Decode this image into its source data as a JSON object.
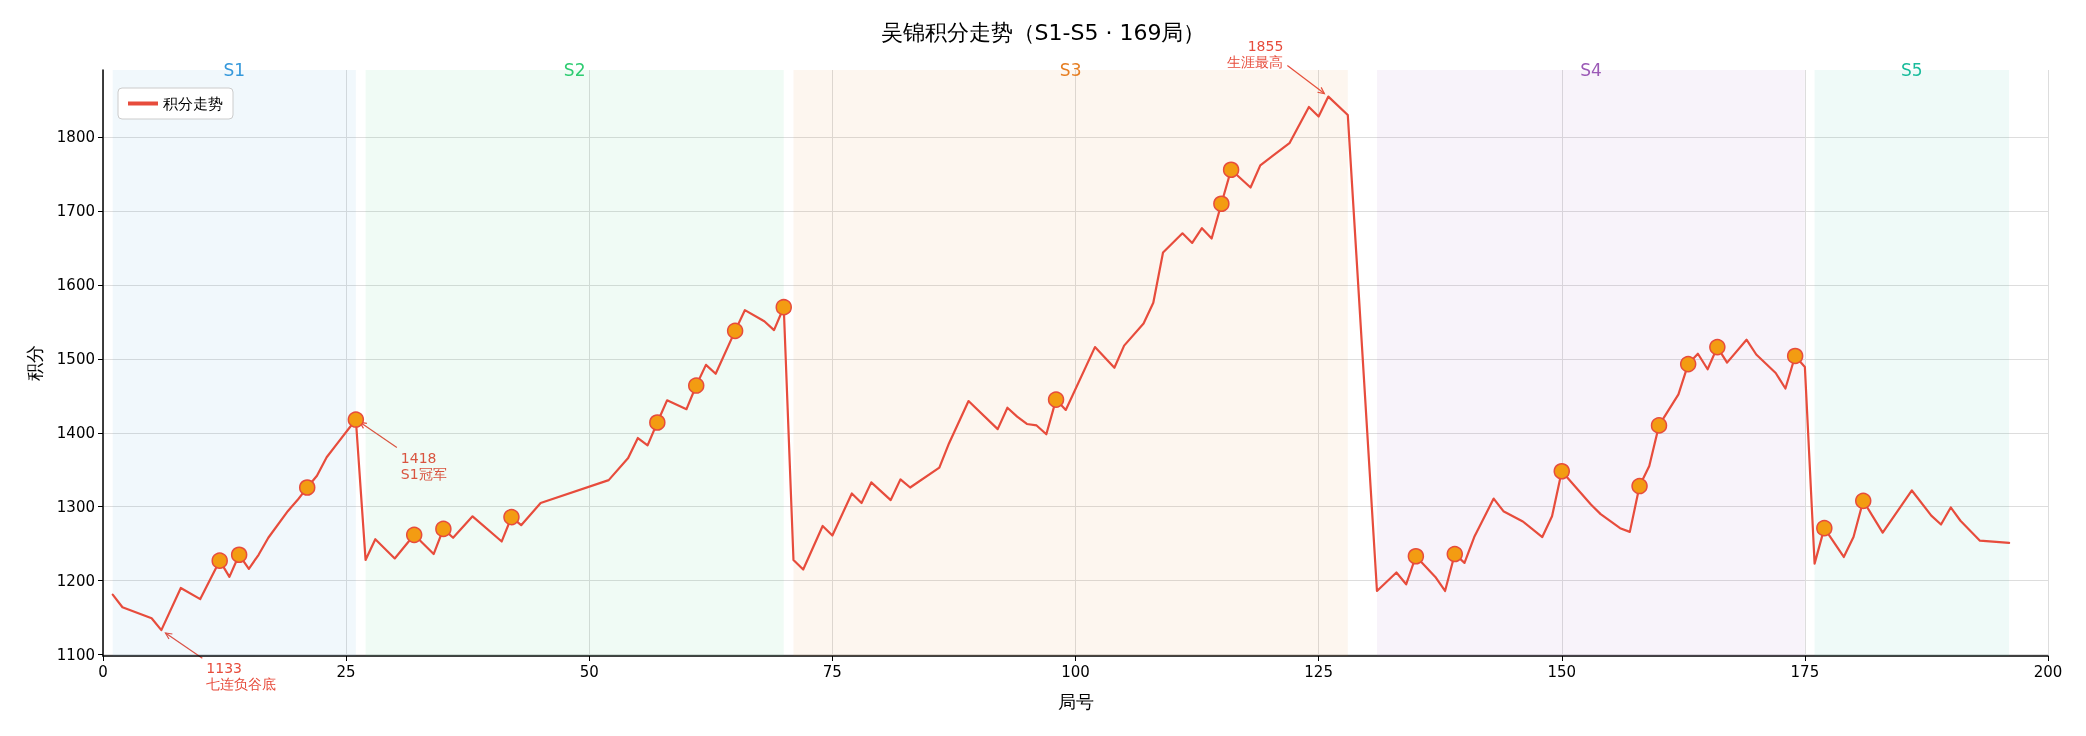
{
  "chart_data": {
    "type": "line",
    "title": "吴锦积分走势（S1-S5 · 169局）",
    "xlabel": "局号",
    "ylabel": "积分",
    "xlim": [
      0,
      200
    ],
    "xticks": [
      0,
      25,
      50,
      75,
      100,
      125,
      150,
      175,
      200
    ],
    "ylim": [
      1098,
      1891
    ],
    "yticks": [
      1100,
      1200,
      1300,
      1400,
      1500,
      1600,
      1700,
      1800
    ],
    "grid": true,
    "legend": "top left",
    "series": [
      {
        "name": "积分走势",
        "color": "#e74c3c",
        "x": [
          1,
          2,
          5,
          6,
          8,
          10,
          12,
          13,
          14,
          15,
          16,
          17,
          19,
          20,
          21,
          22,
          23,
          24,
          26,
          27,
          28,
          30,
          32,
          34,
          35,
          36,
          38,
          41,
          42,
          43,
          45,
          52,
          54,
          55,
          56,
          57,
          58,
          60,
          61,
          62,
          63,
          65,
          66,
          68,
          69,
          70,
          71,
          72,
          74,
          75,
          77,
          78,
          79,
          81,
          82,
          83,
          86,
          87,
          89,
          92,
          93,
          94,
          95,
          96,
          97,
          98,
          99,
          102,
          104,
          105,
          107,
          108,
          109,
          111,
          112,
          113,
          114,
          115,
          116,
          118,
          119,
          122,
          124,
          125,
          126,
          128,
          131,
          133,
          134,
          135,
          137,
          138,
          139,
          140,
          141,
          143,
          144,
          146,
          148,
          149,
          150,
          153,
          154,
          156,
          157,
          158,
          159,
          160,
          161,
          162,
          163,
          164,
          165,
          166,
          167,
          169,
          170,
          172,
          173,
          174,
          175,
          176,
          177,
          179,
          180,
          181,
          183,
          186,
          188,
          189,
          190,
          191,
          193,
          196
        ],
        "values": [
          1181,
          1164,
          1149,
          1133,
          1190,
          1175,
          1227,
          1205,
          1235,
          1216,
          1235,
          1258,
          1294,
          1309,
          1326,
          1342,
          1367,
          1384,
          1418,
          1228,
          1256,
          1230,
          1262,
          1236,
          1270,
          1258,
          1287,
          1253,
          1286,
          1275,
          1305,
          1336,
          1366,
          1393,
          1383,
          1414,
          1444,
          1432,
          1464,
          1492,
          1480,
          1538,
          1566,
          1551,
          1539,
          1570,
          1228,
          1215,
          1274,
          1261,
          1318,
          1305,
          1333,
          1309,
          1337,
          1326,
          1353,
          1386,
          1443,
          1405,
          1434,
          1422,
          1412,
          1410,
          1398,
          1445,
          1431,
          1516,
          1488,
          1518,
          1548,
          1576,
          1644,
          1670,
          1657,
          1677,
          1663,
          1710,
          1756,
          1732,
          1762,
          1792,
          1841,
          1828,
          1855,
          1830,
          1186,
          1211,
          1195,
          1233,
          1205,
          1186,
          1236,
          1224,
          1259,
          1311,
          1294,
          1280,
          1259,
          1287,
          1348,
          1303,
          1290,
          1271,
          1266,
          1328,
          1355,
          1410,
          1431,
          1452,
          1493,
          1507,
          1486,
          1516,
          1495,
          1526,
          1506,
          1481,
          1460,
          1504,
          1489,
          1223,
          1271,
          1232,
          1259,
          1308,
          1265,
          1322,
          1288,
          1276,
          1299,
          1281,
          1254,
          1251
        ]
      },
      {
        "type": "scatter",
        "marker": "circle",
        "color": "#f39c12",
        "x": [
          12,
          14,
          21,
          26,
          32,
          35,
          42,
          57,
          61,
          65,
          70,
          98,
          115,
          116,
          135,
          139,
          150,
          158,
          160,
          163,
          166,
          174,
          177,
          181
        ],
        "values": [
          1227,
          1235,
          1326,
          1418,
          1262,
          1270,
          1286,
          1414,
          1464,
          1538,
          1570,
          1445,
          1710,
          1756,
          1233,
          1236,
          1348,
          1328,
          1410,
          1493,
          1516,
          1504,
          1271,
          1308
        ]
      }
    ],
    "bands": [
      {
        "axis": "x",
        "from": 1,
        "to": 26,
        "label": "S1",
        "color": "#3498db"
      },
      {
        "axis": "x",
        "from": 27,
        "to": 70,
        "label": "S2",
        "color": "#2ecc71"
      },
      {
        "axis": "x",
        "from": 71,
        "to": 128,
        "label": "S3",
        "color": "#e67e22"
      },
      {
        "axis": "x",
        "from": 131,
        "to": 175,
        "label": "S4",
        "color": "#9b59b6"
      },
      {
        "axis": "x",
        "from": 176,
        "to": 196,
        "label": "S5",
        "color": "#1abc9c"
      }
    ],
    "annotations": [
      {
        "text": "1133\n七连负谷底",
        "x": 6,
        "y": 1133
      },
      {
        "text": "1418\nS1冠军",
        "x": 26,
        "y": 1418
      },
      {
        "text": "1855\n生涯最高",
        "x": 126,
        "y": 1855
      }
    ]
  }
}
